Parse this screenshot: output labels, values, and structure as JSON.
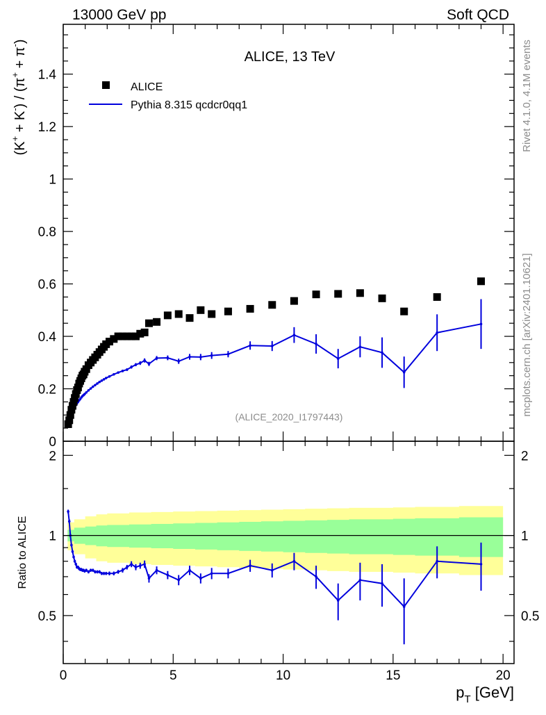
{
  "header": {
    "left": "13000 GeV pp",
    "right": "Soft QCD"
  },
  "side_labels": {
    "rivet": "Rivet 4.1.0,  4.1M events",
    "mcplots": "mcplots.cern.ch [arXiv:2401.10621]"
  },
  "chart_data": [
    {
      "type": "scatter",
      "panel": "main",
      "title": "ALICE, 13 TeV",
      "ylabel": "(K⁺ + K⁻) / (π⁺ + π⁻)",
      "ylabel_parts": {
        "open": "(K",
        "sup1": "+",
        "mid1": " + K",
        "sup2": "-",
        "mid2": ") / (π",
        "sup3": "+",
        "mid3": " + π",
        "sup4": "-",
        "close": ")"
      },
      "xlim": [
        0,
        20.5
      ],
      "ylim": [
        0,
        1.59
      ],
      "y_ticks": [
        0,
        0.2,
        0.4,
        0.6,
        0.8,
        1,
        1.2,
        1.4
      ],
      "y_tick_labels": [
        "0",
        "0.2",
        "0.4",
        "0.6",
        "0.8",
        "1",
        "1.2",
        "1.4"
      ],
      "watermark": "(ALICE_2020_I1797443)",
      "legend": [
        {
          "name": "ALICE",
          "marker": "square",
          "color": "#000000"
        },
        {
          "name": "Pythia 8.315 qcdcr0qq1",
          "marker": "line",
          "color": "#0000dd"
        }
      ],
      "series": [
        {
          "name": "ALICE",
          "color": "#000000",
          "x": [
            0.225,
            0.275,
            0.325,
            0.375,
            0.425,
            0.475,
            0.525,
            0.575,
            0.625,
            0.675,
            0.725,
            0.775,
            0.825,
            0.875,
            0.925,
            0.975,
            1.05,
            1.15,
            1.25,
            1.35,
            1.45,
            1.55,
            1.65,
            1.75,
            1.85,
            1.95,
            2.1,
            2.3,
            2.5,
            2.7,
            2.9,
            3.1,
            3.3,
            3.5,
            3.7,
            3.9,
            4.25,
            4.75,
            5.25,
            5.75,
            6.25,
            6.75,
            7.5,
            8.5,
            9.5,
            10.5,
            11.5,
            12.5,
            13.5,
            14.5,
            15.5,
            17.0,
            19.0
          ],
          "y": [
            0.065,
            0.08,
            0.1,
            0.12,
            0.135,
            0.15,
            0.165,
            0.18,
            0.195,
            0.205,
            0.22,
            0.23,
            0.24,
            0.25,
            0.255,
            0.265,
            0.275,
            0.29,
            0.3,
            0.31,
            0.32,
            0.33,
            0.34,
            0.35,
            0.36,
            0.37,
            0.38,
            0.39,
            0.4,
            0.4,
            0.4,
            0.4,
            0.4,
            0.41,
            0.415,
            0.45,
            0.455,
            0.48,
            0.485,
            0.47,
            0.5,
            0.485,
            0.495,
            0.505,
            0.52,
            0.535,
            0.56,
            0.562,
            0.565,
            0.545,
            0.495,
            0.55,
            0.61
          ]
        },
        {
          "name": "Pythia 8.315 qcdcr0qq1",
          "color": "#0000dd",
          "x": [
            0.225,
            0.275,
            0.325,
            0.375,
            0.425,
            0.475,
            0.525,
            0.575,
            0.625,
            0.675,
            0.725,
            0.775,
            0.825,
            0.875,
            0.925,
            0.975,
            1.05,
            1.15,
            1.25,
            1.35,
            1.45,
            1.55,
            1.65,
            1.75,
            1.85,
            1.95,
            2.1,
            2.3,
            2.5,
            2.7,
            2.9,
            3.1,
            3.3,
            3.5,
            3.7,
            3.9,
            4.25,
            4.75,
            5.25,
            5.75,
            6.25,
            6.75,
            7.5,
            8.5,
            9.5,
            10.5,
            11.5,
            12.5,
            13.5,
            14.5,
            15.5,
            17.0,
            19.0
          ],
          "y": [
            0.08,
            0.09,
            0.1,
            0.11,
            0.117,
            0.124,
            0.131,
            0.138,
            0.144,
            0.15,
            0.156,
            0.161,
            0.167,
            0.172,
            0.176,
            0.18,
            0.186,
            0.194,
            0.201,
            0.208,
            0.214,
            0.22,
            0.226,
            0.231,
            0.236,
            0.241,
            0.247,
            0.255,
            0.262,
            0.268,
            0.273,
            0.283,
            0.292,
            0.298,
            0.308,
            0.295,
            0.317,
            0.318,
            0.305,
            0.322,
            0.321,
            0.327,
            0.332,
            0.365,
            0.363,
            0.405,
            0.371,
            0.315,
            0.36,
            0.338,
            0.263,
            0.414,
            0.447
          ],
          "yerr": [
            0.003,
            0.003,
            0.003,
            0.003,
            0.003,
            0.003,
            0.003,
            0.003,
            0.003,
            0.003,
            0.003,
            0.003,
            0.003,
            0.003,
            0.003,
            0.003,
            0.003,
            0.003,
            0.003,
            0.003,
            0.003,
            0.003,
            0.003,
            0.003,
            0.003,
            0.003,
            0.004,
            0.004,
            0.004,
            0.005,
            0.005,
            0.006,
            0.006,
            0.007,
            0.008,
            0.008,
            0.008,
            0.009,
            0.01,
            0.011,
            0.012,
            0.013,
            0.012,
            0.016,
            0.019,
            0.03,
            0.037,
            0.037,
            0.04,
            0.058,
            0.06,
            0.07,
            0.095
          ]
        }
      ]
    },
    {
      "type": "line",
      "panel": "ratio",
      "ylabel": "Ratio to ALICE",
      "xlabel": "p",
      "xlabel_sub": "T",
      "xlabel_unit": " [GeV]",
      "xlim": [
        0,
        20.5
      ],
      "ylim": [
        0.33,
        2.26
      ],
      "x_ticks": [
        0,
        5,
        10,
        15,
        20
      ],
      "x_tick_labels": [
        "0",
        "5",
        "10",
        "15",
        "20"
      ],
      "y_ticks": [
        0.5,
        1,
        2
      ],
      "y_tick_labels": [
        "0.5",
        "1",
        "2"
      ],
      "bands": {
        "x_edges": [
          0.2,
          0.5,
          1.0,
          1.5,
          2.0,
          3.0,
          4.0,
          5.0,
          6.0,
          7.0,
          8.0,
          9.0,
          10.0,
          11.0,
          12.0,
          13.0,
          14.0,
          15.0,
          16.0,
          18.0,
          20.0
        ],
        "green_lo": [
          0.95,
          0.93,
          0.92,
          0.91,
          0.905,
          0.9,
          0.895,
          0.89,
          0.885,
          0.88,
          0.875,
          0.87,
          0.865,
          0.86,
          0.855,
          0.85,
          0.85,
          0.845,
          0.84,
          0.83
        ],
        "green_hi": [
          1.05,
          1.07,
          1.08,
          1.09,
          1.095,
          1.1,
          1.105,
          1.11,
          1.115,
          1.12,
          1.125,
          1.13,
          1.135,
          1.14,
          1.145,
          1.15,
          1.15,
          1.155,
          1.16,
          1.17
        ],
        "yellow_lo": [
          0.88,
          0.85,
          0.82,
          0.8,
          0.79,
          0.78,
          0.775,
          0.77,
          0.765,
          0.76,
          0.755,
          0.75,
          0.745,
          0.74,
          0.735,
          0.73,
          0.73,
          0.725,
          0.72,
          0.71
        ],
        "yellow_hi": [
          1.12,
          1.15,
          1.18,
          1.2,
          1.21,
          1.22,
          1.225,
          1.23,
          1.235,
          1.24,
          1.245,
          1.25,
          1.255,
          1.26,
          1.265,
          1.27,
          1.27,
          1.275,
          1.28,
          1.29
        ]
      },
      "series": [
        {
          "name": "Pythia 8.315 qcdcr0qq1 / ALICE",
          "color": "#0000dd",
          "x": [
            0.225,
            0.275,
            0.325,
            0.375,
            0.425,
            0.475,
            0.525,
            0.575,
            0.625,
            0.675,
            0.725,
            0.775,
            0.825,
            0.875,
            0.925,
            0.975,
            1.05,
            1.15,
            1.25,
            1.35,
            1.45,
            1.55,
            1.65,
            1.75,
            1.85,
            1.95,
            2.1,
            2.3,
            2.5,
            2.7,
            2.9,
            3.1,
            3.3,
            3.5,
            3.7,
            3.9,
            4.25,
            4.75,
            5.25,
            5.75,
            6.25,
            6.75,
            7.5,
            8.5,
            9.5,
            10.5,
            11.5,
            12.5,
            13.5,
            14.5,
            15.5,
            17.0,
            19.0
          ],
          "y": [
            1.23,
            1.13,
            1.0,
            0.92,
            0.87,
            0.83,
            0.8,
            0.78,
            0.76,
            0.76,
            0.75,
            0.745,
            0.745,
            0.74,
            0.74,
            0.735,
            0.74,
            0.73,
            0.74,
            0.74,
            0.73,
            0.73,
            0.73,
            0.72,
            0.72,
            0.72,
            0.72,
            0.72,
            0.73,
            0.74,
            0.76,
            0.78,
            0.76,
            0.77,
            0.78,
            0.69,
            0.74,
            0.71,
            0.68,
            0.74,
            0.69,
            0.72,
            0.72,
            0.77,
            0.74,
            0.8,
            0.7,
            0.57,
            0.68,
            0.66,
            0.54,
            0.8,
            0.78
          ],
          "yerr": [
            0.02,
            0.02,
            0.015,
            0.01,
            0.01,
            0.01,
            0.01,
            0.01,
            0.01,
            0.01,
            0.01,
            0.01,
            0.01,
            0.01,
            0.01,
            0.01,
            0.01,
            0.01,
            0.01,
            0.01,
            0.01,
            0.01,
            0.01,
            0.01,
            0.01,
            0.01,
            0.012,
            0.012,
            0.012,
            0.015,
            0.015,
            0.02,
            0.02,
            0.02,
            0.025,
            0.025,
            0.025,
            0.025,
            0.03,
            0.03,
            0.03,
            0.035,
            0.03,
            0.04,
            0.045,
            0.06,
            0.07,
            0.09,
            0.11,
            0.12,
            0.15,
            0.11,
            0.16
          ]
        }
      ]
    }
  ]
}
